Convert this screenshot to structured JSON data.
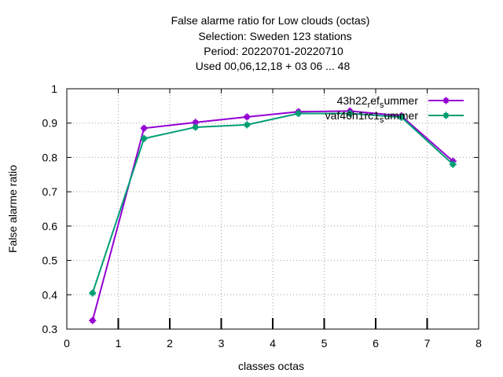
{
  "chart_data": {
    "type": "line",
    "title_lines": [
      "False alarme ratio  for Low clouds (octas)",
      "Selection: Sweden     123 stations",
      "Period: 20220701-20220710",
      "Used  00,06,12,18  + 03 06 ... 48"
    ],
    "xlabel": "classes octas",
    "ylabel": "False alarme ratio",
    "xlim": [
      0,
      8
    ],
    "ylim": [
      0.3,
      1.0
    ],
    "xticks": [
      0,
      1,
      2,
      3,
      4,
      5,
      6,
      7,
      8
    ],
    "yticks": [
      0.3,
      0.4,
      0.5,
      0.6,
      0.7,
      0.8,
      0.9,
      1.0
    ],
    "xtick_labels": [
      "0",
      "1",
      "2",
      "3",
      "4",
      "5",
      "6",
      "7",
      "8"
    ],
    "ytick_labels": [
      "0.3",
      "0.4",
      "0.5",
      "0.6",
      "0.7",
      "0.8",
      "0.9",
      "1"
    ],
    "grid": true,
    "legend_position": "top-right",
    "series": [
      {
        "name": "43h22_ref_summer",
        "legend_base": "43h22",
        "legend_sub1": "r",
        "legend_mid": "ef",
        "legend_sub2": "s",
        "legend_end": "ummer",
        "color": "#9400d3",
        "x": [
          0.5,
          1.5,
          2.5,
          3.5,
          4.5,
          5.5,
          6.5,
          7.5
        ],
        "y": [
          0.325,
          0.885,
          0.902,
          0.918,
          0.933,
          0.935,
          0.921,
          0.789
        ]
      },
      {
        "name": "vaf46h1rc1_summer",
        "legend_base": "vaf46h1rc1",
        "legend_sub1": "s",
        "legend_mid": "ummer",
        "legend_sub2": "",
        "legend_end": "",
        "color": "#009e73",
        "x": [
          0.5,
          1.5,
          2.5,
          3.5,
          4.5,
          5.5,
          6.5,
          7.5
        ],
        "y": [
          0.405,
          0.855,
          0.888,
          0.895,
          0.928,
          0.928,
          0.917,
          0.78
        ]
      }
    ],
    "rug_x": [
      1,
      2,
      3,
      4,
      5,
      6,
      7
    ]
  }
}
